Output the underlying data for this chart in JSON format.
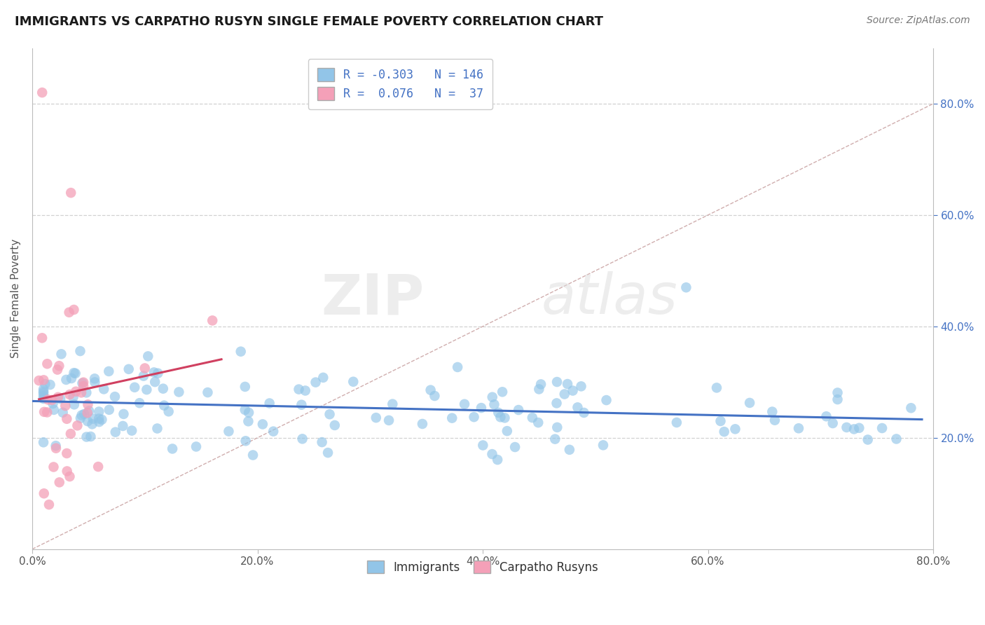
{
  "title": "IMMIGRANTS VS CARPATHO RUSYN SINGLE FEMALE POVERTY CORRELATION CHART",
  "source": "Source: ZipAtlas.com",
  "ylabel": "Single Female Poverty",
  "xlim": [
    0.0,
    0.8
  ],
  "ylim": [
    0.0,
    0.9
  ],
  "xtick_labels": [
    "0.0%",
    "20.0%",
    "40.0%",
    "60.0%",
    "80.0%"
  ],
  "xtick_values": [
    0.0,
    0.2,
    0.4,
    0.6,
    0.8
  ],
  "ytick_right_labels": [
    "20.0%",
    "40.0%",
    "60.0%",
    "80.0%"
  ],
  "ytick_right_values": [
    0.2,
    0.4,
    0.6,
    0.8
  ],
  "immigrants_R": -0.303,
  "immigrants_N": 146,
  "rusyn_R": 0.076,
  "rusyn_N": 37,
  "immigrants_color": "#92C5E8",
  "rusyn_color": "#F4A0B8",
  "immigrants_line_color": "#4472C4",
  "rusyn_line_color": "#D04060",
  "diagonal_color": "#C8A0A0",
  "grid_color": "#CCCCCC",
  "background_color": "#FFFFFF",
  "watermark_zip": "ZIP",
  "watermark_atlas": "atlas",
  "legend_box_color": "#4472C4",
  "legend_text_color": "#4472C4"
}
